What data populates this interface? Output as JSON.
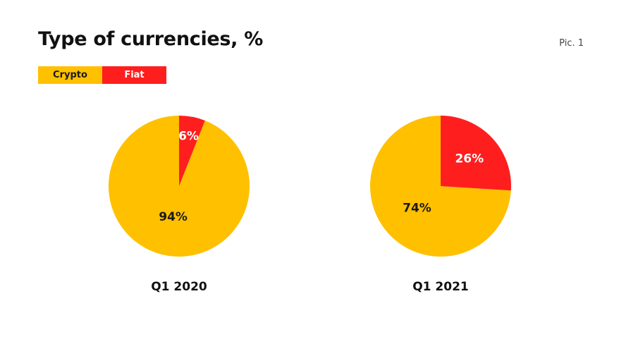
{
  "header": {
    "title": "Type of currencies, %",
    "pic_label": "Pic. 1"
  },
  "colors": {
    "crypto": "#FFC000",
    "fiat": "#FF1E1E",
    "label_dark": "#1a1a1a",
    "label_light": "#ffffff"
  },
  "legend": [
    {
      "label": "Crypto",
      "color": "#FFC000"
    },
    {
      "label": "Fiat",
      "color": "#FF1E1E"
    }
  ],
  "chart_data": [
    {
      "type": "pie",
      "title": "Type of currencies, %",
      "caption": "Q1 2020",
      "slices": [
        {
          "label": "Crypto",
          "value": 94,
          "display": "94%",
          "color": "#FFC000"
        },
        {
          "label": "Fiat",
          "value": 6,
          "display": "6%",
          "color": "#FF1E1E"
        }
      ],
      "legend_placement": "top-left"
    },
    {
      "type": "pie",
      "title": "Type of currencies, %",
      "caption": "Q1 2021",
      "slices": [
        {
          "label": "Crypto",
          "value": 74,
          "display": "74%",
          "color": "#FFC000"
        },
        {
          "label": "Fiat",
          "value": 26,
          "display": "26%",
          "color": "#FF1E1E"
        }
      ],
      "legend_placement": "top-left"
    }
  ]
}
